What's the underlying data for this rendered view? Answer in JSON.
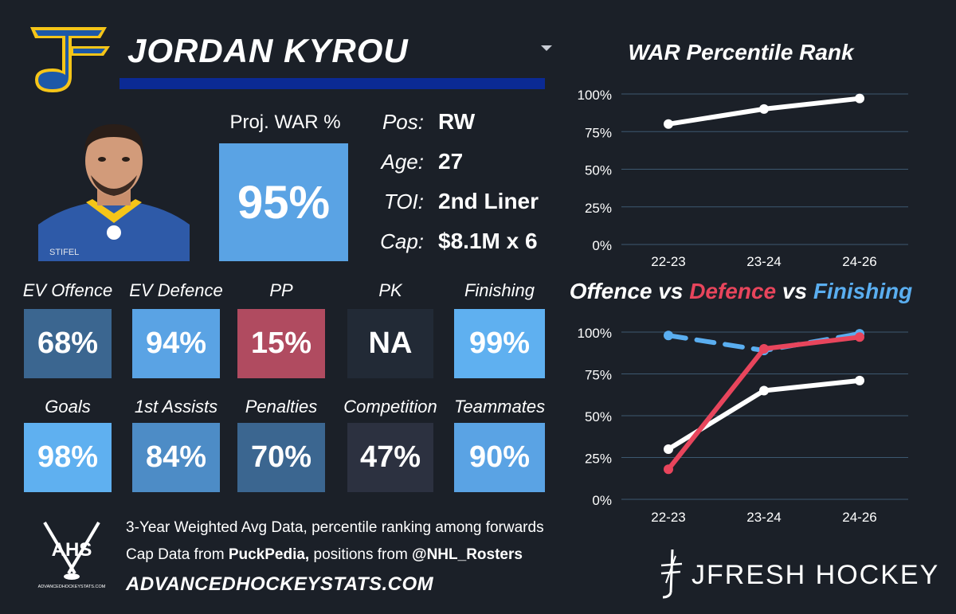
{
  "player": {
    "name": "JORDAN KYROU",
    "team_logo": "blues-note-logo"
  },
  "projection": {
    "label": "Proj. WAR %",
    "value": "95%"
  },
  "info": [
    {
      "label": "Pos:",
      "value": "RW"
    },
    {
      "label": "Age:",
      "value": "27"
    },
    {
      "label": "TOI:",
      "value": "2nd Liner"
    },
    {
      "label": "Cap:",
      "value": "$8.1M x 6"
    }
  ],
  "metrics_row1": [
    {
      "label": "EV Offence",
      "value": "68%",
      "color": "#3b6690"
    },
    {
      "label": "EV Defence",
      "value": "94%",
      "color": "#5aa3e4"
    },
    {
      "label": "PP",
      "value": "15%",
      "color": "#b04b60"
    },
    {
      "label": "PK",
      "value": "NA",
      "color": "#222a36"
    },
    {
      "label": "Finishing",
      "value": "99%",
      "color": "#5fb0f0"
    }
  ],
  "metrics_row2": [
    {
      "label": "Goals",
      "value": "98%",
      "color": "#5fb0f0"
    },
    {
      "label": "1st Assists",
      "value": "84%",
      "color": "#4d8cc6"
    },
    {
      "label": "Penalties",
      "value": "70%",
      "color": "#3b6690"
    },
    {
      "label": "Competition",
      "value": "47%",
      "color": "#2c3140"
    },
    {
      "label": "Teammates",
      "value": "90%",
      "color": "#5aa3e4"
    }
  ],
  "footer": {
    "line1": "3-Year Weighted Avg Data, percentile ranking among forwards",
    "line2_prefix": "Cap Data from ",
    "line2_bold1": "PuckPedia,",
    "line2_mid": " positions from ",
    "line2_bold2": "@NHL_Rosters",
    "url": "ADVANCEDHOCKEYSTATS.COM",
    "ahs_logo_text": "AHS",
    "ahs_logo_subtext": "ADVANCEDHOCKEYSTATS.COM",
    "brand": "JFRESH HOCKEY"
  },
  "colors": {
    "background": "#1b2028",
    "accent_blue": "#0b2a94",
    "defence_red": "#e8455c",
    "finishing_blue": "#5aaef0",
    "offence_white": "#ffffff"
  },
  "chart_data": [
    {
      "type": "line",
      "title": "WAR Percentile Rank",
      "categories": [
        "22-23",
        "23-24",
        "24-26"
      ],
      "series": [
        {
          "name": "",
          "values": [
            80,
            90,
            97
          ],
          "color": "#ffffff"
        }
      ],
      "ylim": [
        0,
        100
      ],
      "yticks": [
        "0%",
        "25%",
        "50%",
        "75%",
        "100%"
      ],
      "grid": true
    },
    {
      "type": "line",
      "title_parts": [
        {
          "text": "Offence",
          "color": "#ffffff"
        },
        {
          "text": " vs ",
          "color": "#ffffff"
        },
        {
          "text": "Defence",
          "color": "#e8455c"
        },
        {
          "text": " vs ",
          "color": "#ffffff"
        },
        {
          "text": "Finishing",
          "color": "#5aaef0"
        }
      ],
      "categories": [
        "22-23",
        "23-24",
        "24-26"
      ],
      "series": [
        {
          "name": "Offence",
          "values": [
            30,
            65,
            71
          ],
          "color": "#ffffff",
          "dashed": false
        },
        {
          "name": "Defence",
          "values": [
            18,
            90,
            97
          ],
          "color": "#e8455c",
          "dashed": false
        },
        {
          "name": "Finishing",
          "values": [
            98,
            89,
            99
          ],
          "color": "#5aaef0",
          "dashed": true
        }
      ],
      "ylim": [
        0,
        100
      ],
      "yticks": [
        "0%",
        "25%",
        "50%",
        "75%",
        "100%"
      ],
      "grid": true
    }
  ]
}
